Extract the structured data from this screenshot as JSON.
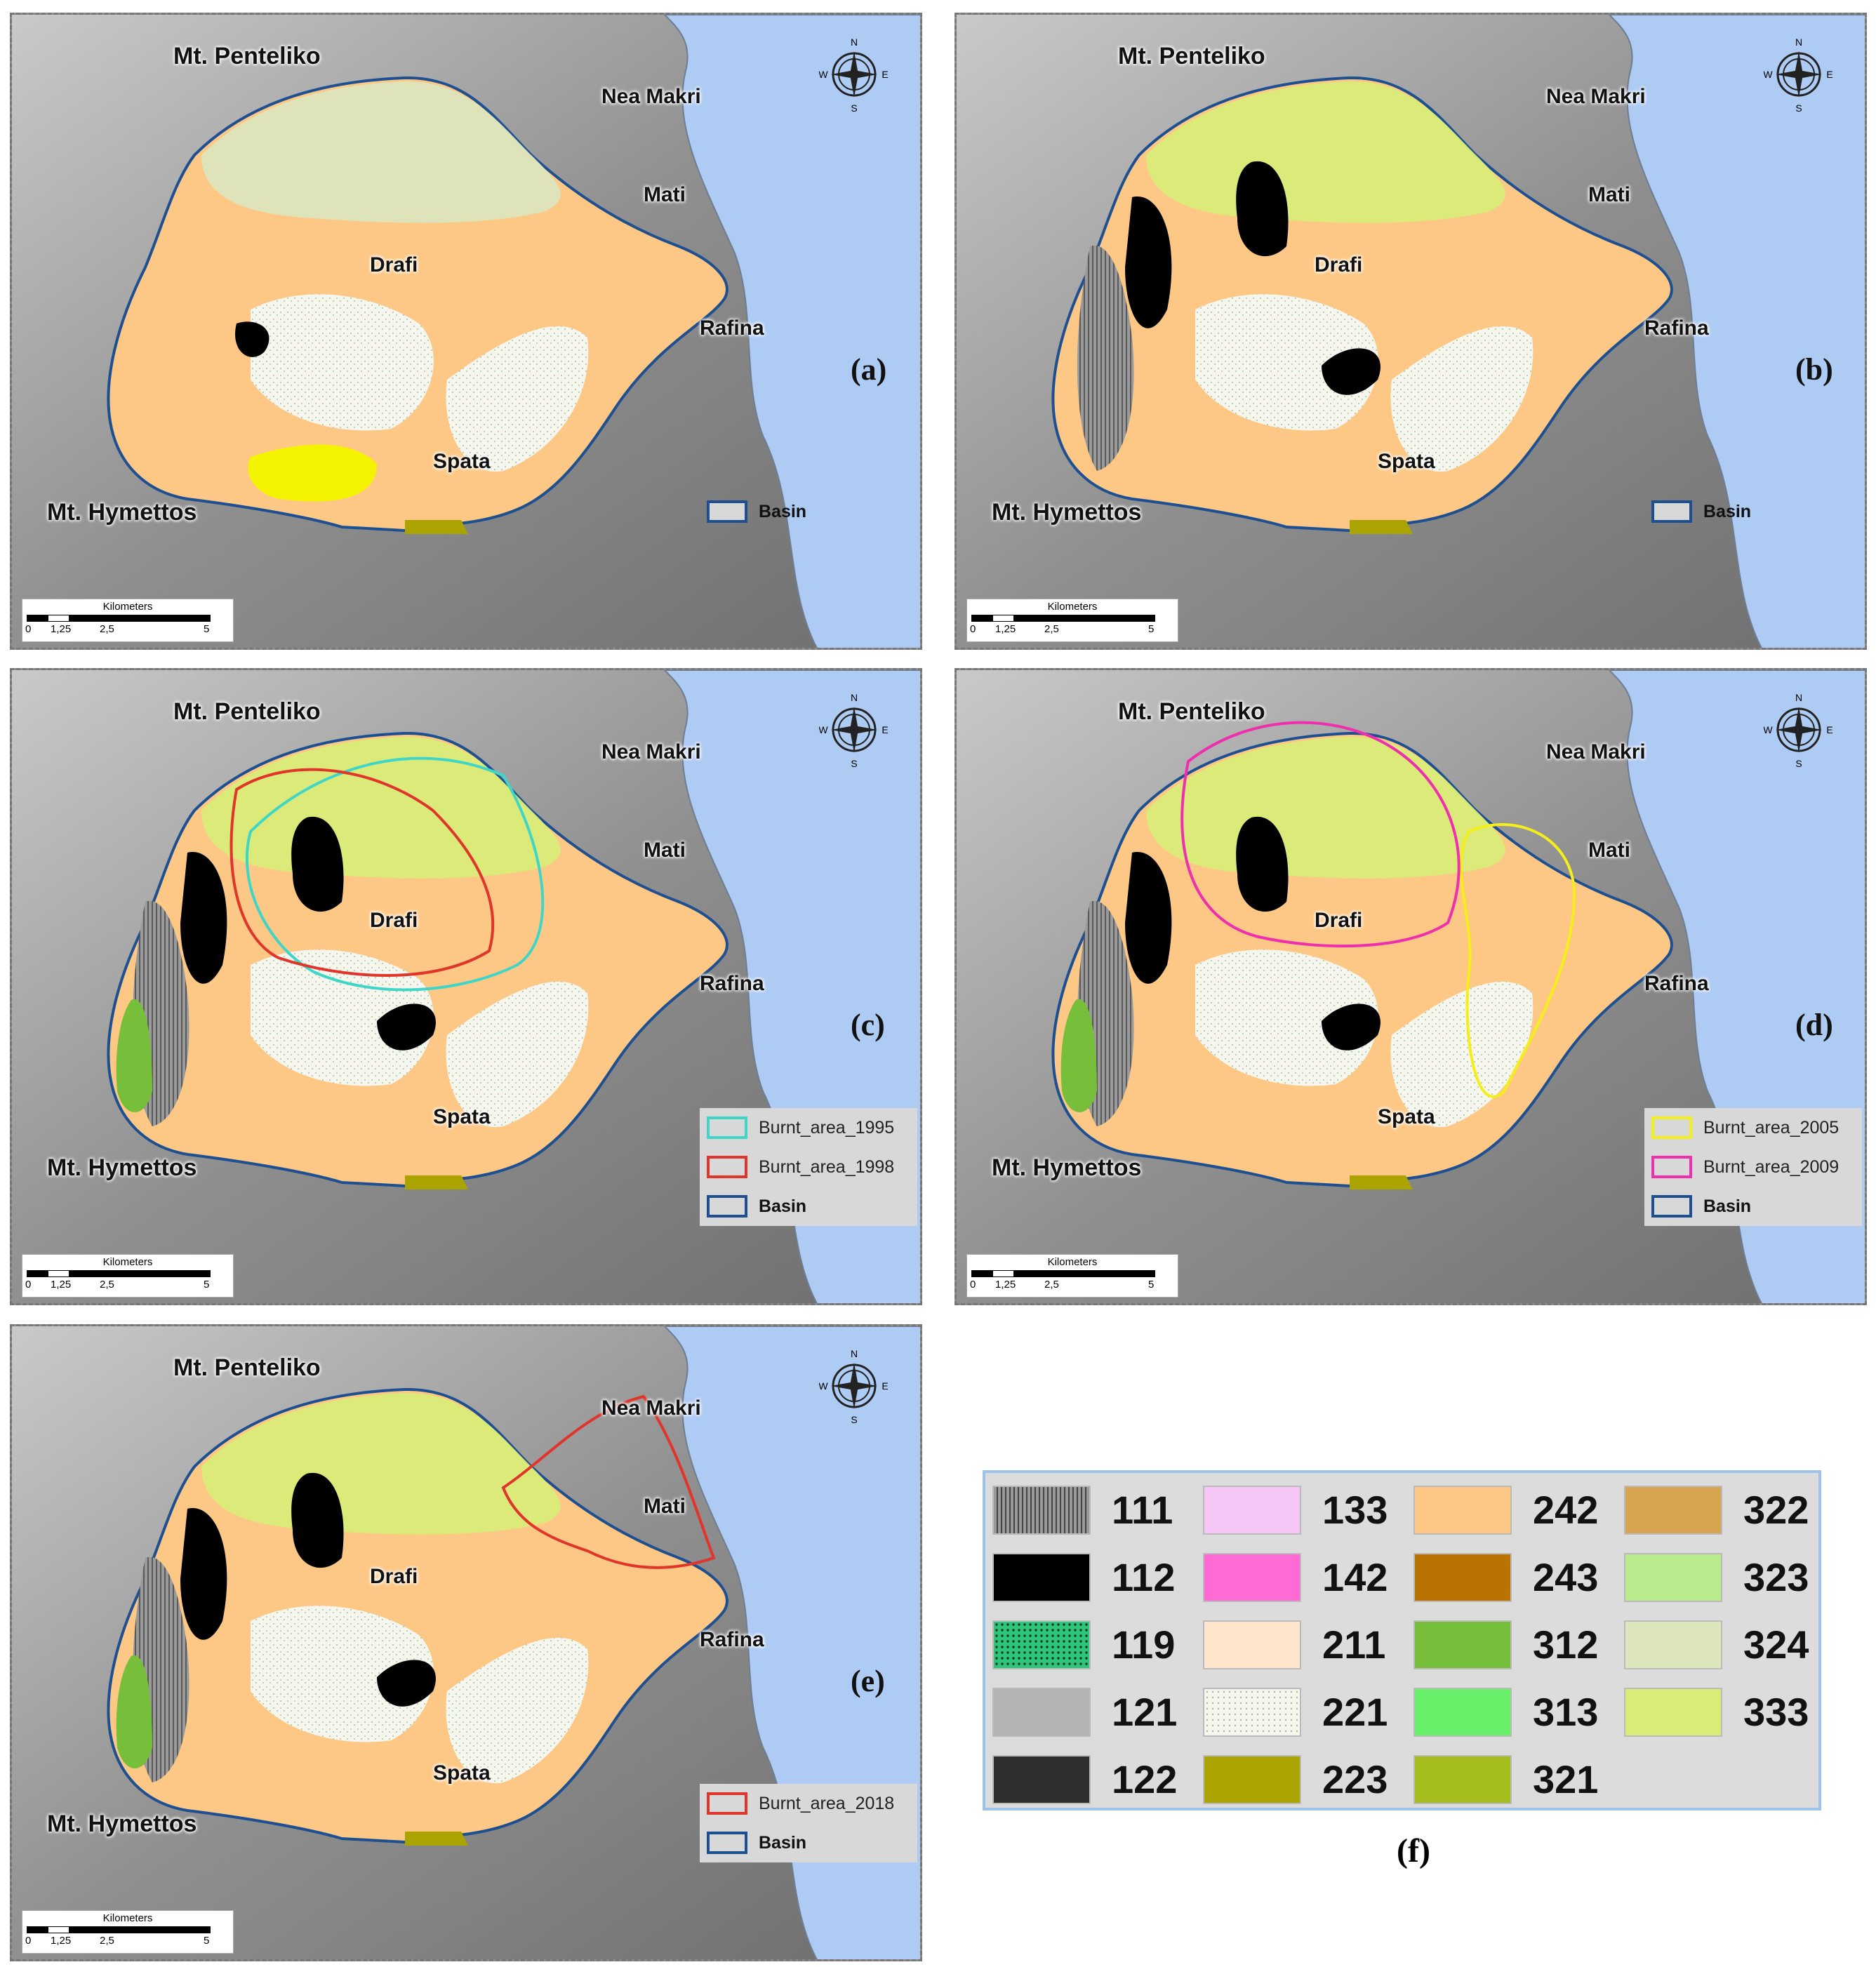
{
  "places": {
    "penteliko": "Mt. Penteliko",
    "nea_makri": "Nea Makri",
    "mati": "Mati",
    "drafi": "Drafi",
    "rafina": "Rafina",
    "spata": "Spata",
    "hymettos": "Mt. Hymettos"
  },
  "compass": {
    "n": "N",
    "s": "S",
    "e": "E",
    "w": "W"
  },
  "scale": {
    "title": "Kilometers",
    "ticks": [
      "0",
      "1,25",
      "2,5",
      "5"
    ]
  },
  "panels": [
    {
      "label": "(a)",
      "legend": [
        {
          "text": "Basin",
          "color": "#1d4f91"
        }
      ]
    },
    {
      "label": "(b)",
      "legend": [
        {
          "text": "Basin",
          "color": "#1d4f91"
        }
      ]
    },
    {
      "label": "(c)",
      "legend": [
        {
          "text": "Burnt_area_1995",
          "color": "#3fd6c8"
        },
        {
          "text": "Burnt_area_1998",
          "color": "#e0352b"
        },
        {
          "text": "Basin",
          "color": "#1d4f91"
        }
      ]
    },
    {
      "label": "(d)",
      "legend": [
        {
          "text": "Burnt_area_2005",
          "color": "#f4ee1a"
        },
        {
          "text": "Burnt_area_2009",
          "color": "#ee2fae"
        },
        {
          "text": "Basin",
          "color": "#1d4f91"
        }
      ]
    },
    {
      "label": "(e)",
      "legend": [
        {
          "text": "Burnt_area_2018",
          "color": "#e0352b"
        },
        {
          "text": "Basin",
          "color": "#1d4f91"
        }
      ]
    }
  ],
  "land_cover_legend": [
    {
      "code": "111",
      "color": "#8a8a8a",
      "pattern": "hatch"
    },
    {
      "code": "112",
      "color": "#000000"
    },
    {
      "code": "119",
      "color": "#2fc47a",
      "pattern": "dots"
    },
    {
      "code": "121",
      "color": "#b3b3b3"
    },
    {
      "code": "122",
      "color": "#2f2f2f"
    },
    {
      "code": "133",
      "color": "#f6c6f6"
    },
    {
      "code": "142",
      "color": "#ff6ad5"
    },
    {
      "code": "211",
      "color": "#fde6cc"
    },
    {
      "code": "221",
      "color": "#f6f6ee",
      "pattern": "dots-light"
    },
    {
      "code": "223",
      "color": "#aaa300"
    },
    {
      "code": "242",
      "color": "#fdc885"
    },
    {
      "code": "243",
      "color": "#b87300"
    },
    {
      "code": "312",
      "color": "#77bf3a"
    },
    {
      "code": "313",
      "color": "#66f06a"
    },
    {
      "code": "321",
      "color": "#a4bc1c"
    },
    {
      "code": "322",
      "color": "#d6a552"
    },
    {
      "code": "323",
      "color": "#b8ec8c"
    },
    {
      "code": "324",
      "color": "#dde5bd"
    },
    {
      "code": "333",
      "color": "#d9ec78"
    }
  ],
  "f_label": "(f)"
}
